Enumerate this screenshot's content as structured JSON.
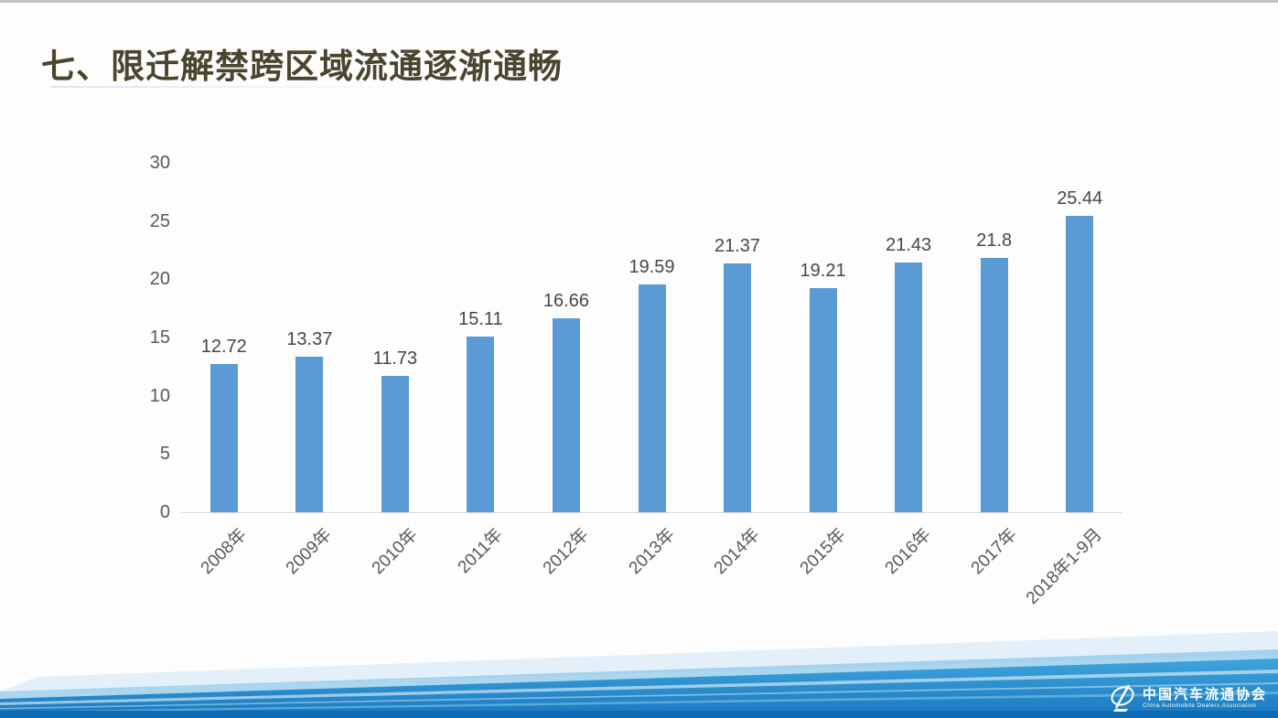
{
  "page": {
    "title": "七、限迁解禁跨区域流通逐渐通畅"
  },
  "chart_data": {
    "type": "bar",
    "categories": [
      "2008年",
      "2009年",
      "2010年",
      "2011年",
      "2012年",
      "2013年",
      "2014年",
      "2015年",
      "2016年",
      "2017年",
      "2018年1-9月"
    ],
    "values": [
      12.72,
      13.37,
      11.73,
      15.11,
      16.66,
      19.59,
      21.37,
      19.21,
      21.43,
      21.8,
      25.44
    ],
    "title": "",
    "xlabel": "",
    "ylabel": "",
    "ylim": [
      0,
      30
    ],
    "yticks": [
      0,
      5,
      10,
      15,
      20,
      25,
      30
    ],
    "grid": false,
    "legend": "none",
    "bar_color": "#5B9BD5",
    "value_label_color": "#474747",
    "axis_text_color": "#595959",
    "axis_line_color": "#D9D9D9"
  },
  "footer": {
    "logo_cn": "中国汽车流通协会",
    "logo_en": "China Automobile Dealers Association"
  },
  "colors": {
    "title_text": "#4A452E",
    "band_dark_blue": "#0E6CB5",
    "band_mid_blue": "#2E96D4",
    "band_light_blue": "#CCE4F5"
  }
}
